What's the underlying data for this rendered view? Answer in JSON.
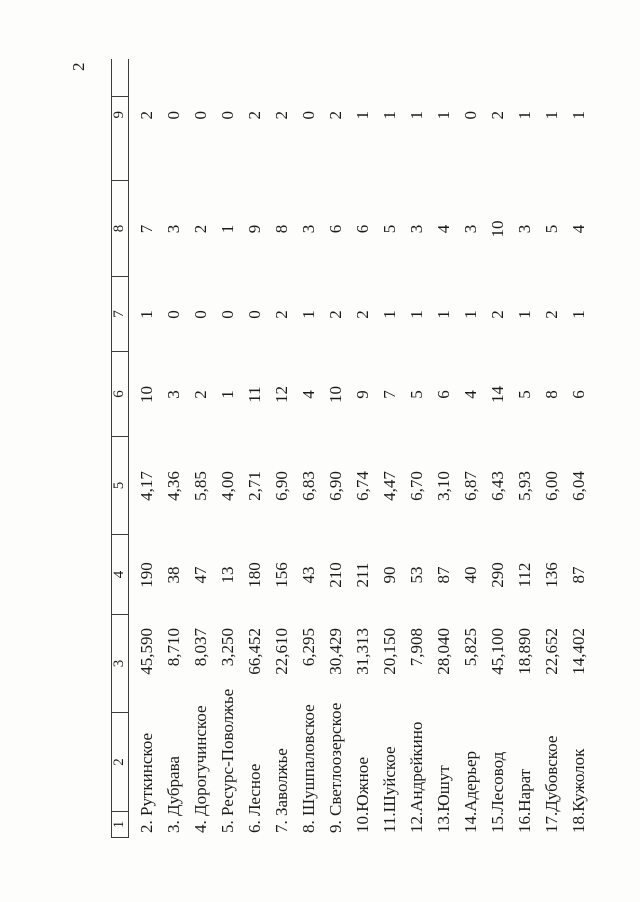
{
  "page": {
    "number": "2"
  },
  "colors": {
    "paper": "#fdfdfc",
    "ink": "#1b1b1b",
    "line": "#3c3c3c"
  },
  "table": {
    "header_labels": [
      "1",
      "2",
      "3",
      "4",
      "5",
      "6",
      "7",
      "8",
      "9"
    ],
    "rows": [
      {
        "num": "2.",
        "name": "Руткинское",
        "c3": "45,590",
        "c4": "190",
        "c5": "4,17",
        "c6": "10",
        "c7": "1",
        "c8": "7",
        "c9": "2"
      },
      {
        "num": "3.",
        "name": "Дубрава",
        "c3": "8,710",
        "c4": "38",
        "c5": "4,36",
        "c6": "3",
        "c7": "0",
        "c8": "3",
        "c9": "0"
      },
      {
        "num": "4.",
        "name": "Дорогучинское",
        "c3": "8,037",
        "c4": "47",
        "c5": "5,85",
        "c6": "2",
        "c7": "0",
        "c8": "2",
        "c9": "0"
      },
      {
        "num": "5.",
        "name": "Ресурс-Поволжье",
        "c3": "3,250",
        "c4": "13",
        "c5": "4,00",
        "c6": "1",
        "c7": "0",
        "c8": "1",
        "c9": "0"
      },
      {
        "num": "6.",
        "name": "Лесное",
        "c3": "66,452",
        "c4": "180",
        "c5": "2,71",
        "c6": "11",
        "c7": "0",
        "c8": "9",
        "c9": "2"
      },
      {
        "num": "7.",
        "name": "Заволжье",
        "c3": "22,610",
        "c4": "156",
        "c5": "6,90",
        "c6": "12",
        "c7": "2",
        "c8": "8",
        "c9": "2"
      },
      {
        "num": "8.",
        "name": "Шушпаловское",
        "c3": "6,295",
        "c4": "43",
        "c5": "6,83",
        "c6": "4",
        "c7": "1",
        "c8": "3",
        "c9": "0"
      },
      {
        "num": "9.",
        "name": "Светлоозерское",
        "c3": "30,429",
        "c4": "210",
        "c5": "6,90",
        "c6": "10",
        "c7": "2",
        "c8": "6",
        "c9": "2"
      },
      {
        "num": "10.",
        "name": "Южное",
        "c3": "31,313",
        "c4": "211",
        "c5": "6,74",
        "c6": "9",
        "c7": "2",
        "c8": "6",
        "c9": "1"
      },
      {
        "num": "11.",
        "name": "Шуйское",
        "c3": "20,150",
        "c4": "90",
        "c5": "4,47",
        "c6": "7",
        "c7": "1",
        "c8": "5",
        "c9": "1"
      },
      {
        "num": "12.",
        "name": "Андрейкино",
        "c3": "7,908",
        "c4": "53",
        "c5": "6,70",
        "c6": "5",
        "c7": "1",
        "c8": "3",
        "c9": "1"
      },
      {
        "num": "13.",
        "name": "Юшут",
        "c3": "28,040",
        "c4": "87",
        "c5": "3,10",
        "c6": "6",
        "c7": "1",
        "c8": "4",
        "c9": "1"
      },
      {
        "num": "14.",
        "name": "Адерьер",
        "c3": "5,825",
        "c4": "40",
        "c5": "6,87",
        "c6": "4",
        "c7": "1",
        "c8": "3",
        "c9": "0"
      },
      {
        "num": "15.",
        "name": "Лесовод",
        "c3": "45,100",
        "c4": "290",
        "c5": "6,43",
        "c6": "14",
        "c7": "2",
        "c8": "10",
        "c9": "2"
      },
      {
        "num": "16.",
        "name": "Нарат",
        "c3": "18,890",
        "c4": "112",
        "c5": "5,93",
        "c6": "5",
        "c7": "1",
        "c8": "3",
        "c9": "1"
      },
      {
        "num": "17.",
        "name": "Дубовское",
        "c3": "22,652",
        "c4": "136",
        "c5": "6,00",
        "c6": "8",
        "c7": "2",
        "c8": "5",
        "c9": "1"
      },
      {
        "num": "18.",
        "name": "Кужолок",
        "c3": "14,402",
        "c4": "87",
        "c5": "6,04",
        "c6": "6",
        "c7": "1",
        "c8": "4",
        "c9": "1"
      }
    ]
  }
}
